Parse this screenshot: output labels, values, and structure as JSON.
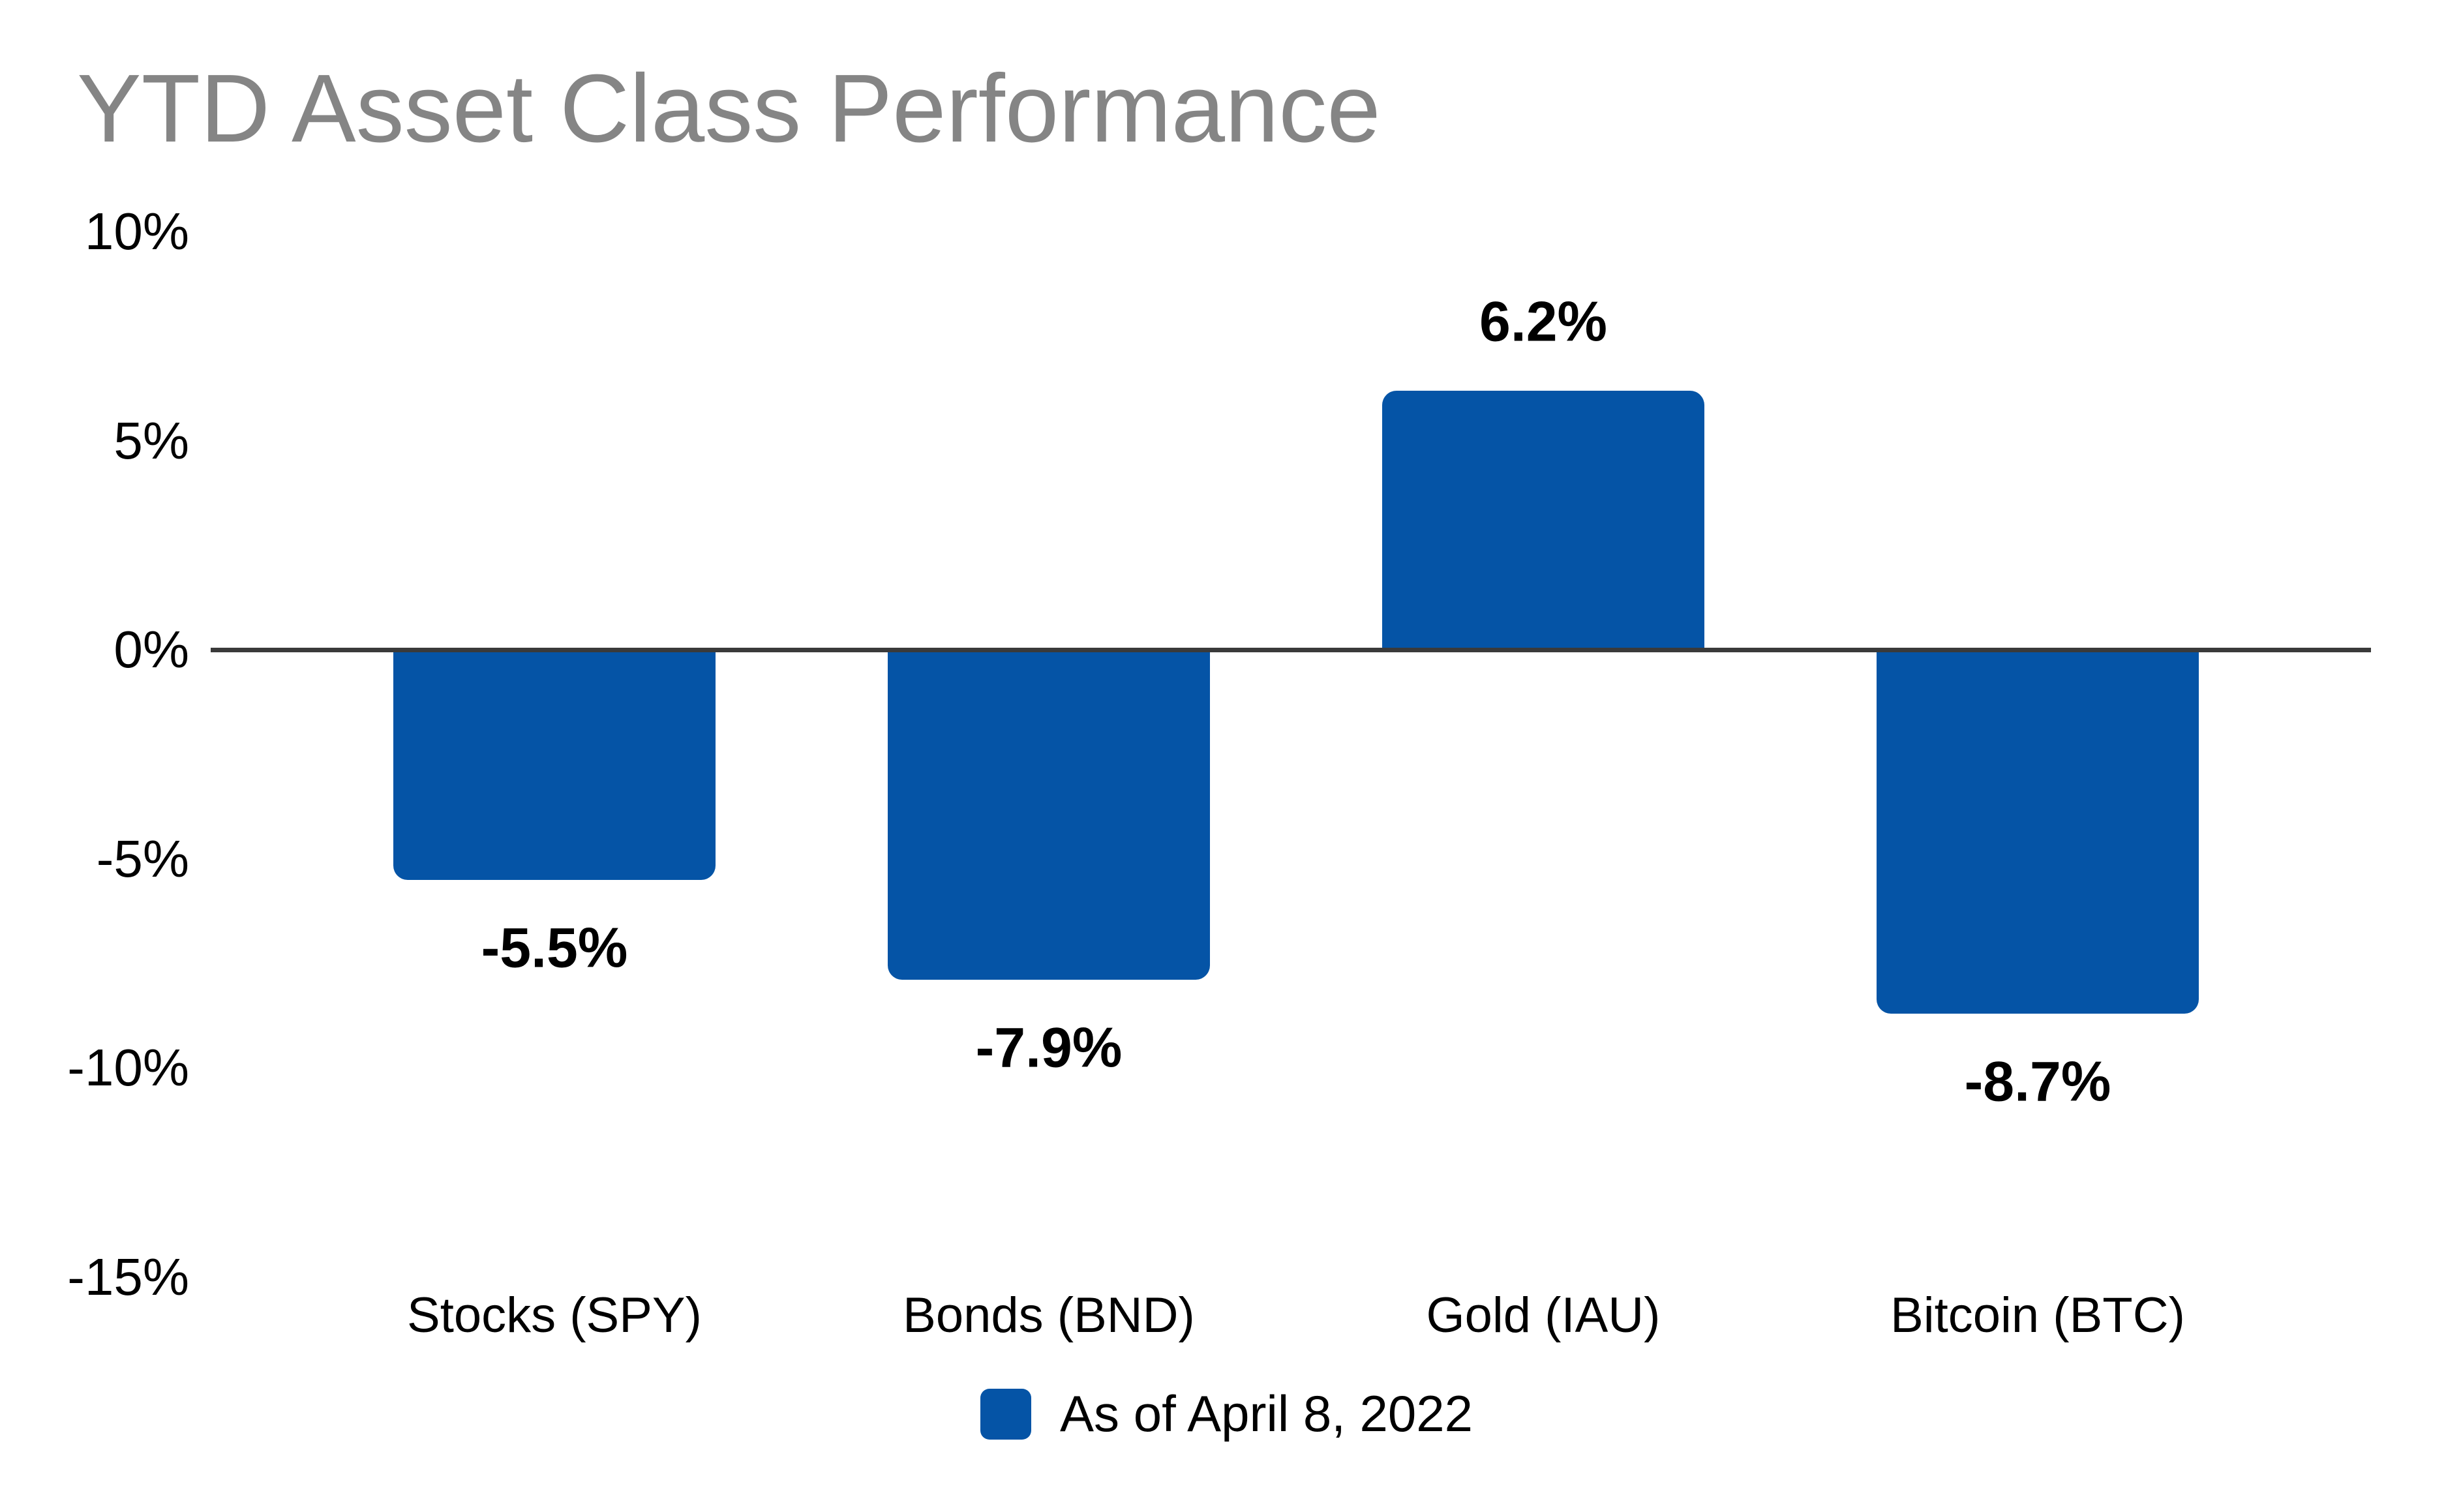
{
  "chart_data": {
    "type": "bar",
    "title": "YTD Asset Class Performance",
    "categories": [
      "Stocks (SPY)",
      "Bonds (BND)",
      "Gold (IAU)",
      "Bitcoin (BTC)"
    ],
    "values": [
      -5.5,
      -7.9,
      6.2,
      -8.7
    ],
    "bar_labels": [
      "-5.5%",
      "-7.9%",
      "6.2%",
      "-8.7%"
    ],
    "yticks": [
      10,
      5,
      0,
      -5,
      -10,
      -15
    ],
    "ytick_labels": [
      "10%",
      "5%",
      "0%",
      "-5%",
      "-10%",
      "-15%"
    ],
    "ylim": [
      -15,
      10
    ],
    "grid": false,
    "legend_position": "bottom",
    "legend_label": "As of April 8, 2022",
    "colors": {
      "bar": "#0554a6",
      "axis_line": "#3a3a3a",
      "title": "#858585",
      "label_text": "#000000",
      "background": "#ffffff"
    }
  }
}
